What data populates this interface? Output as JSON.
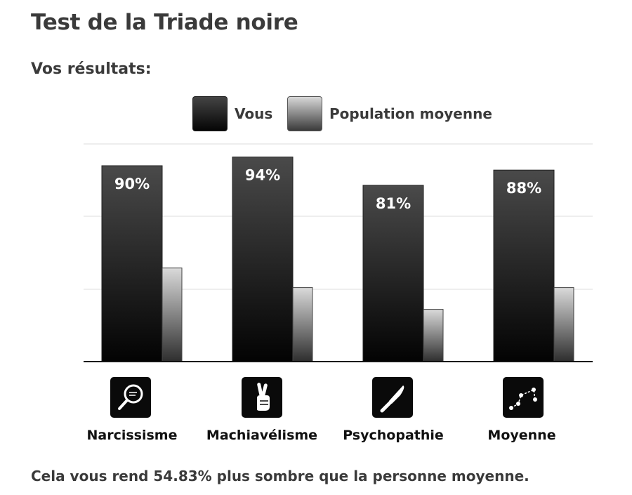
{
  "title": "Test de la Triade noire",
  "subtitle": "Vos résultats:",
  "legend": {
    "you": "Vous",
    "population": "Population moyenne"
  },
  "chart_data": {
    "type": "bar",
    "categories": [
      "Narcissisme",
      "Machiavélisme",
      "Psychopathie",
      "Moyenne"
    ],
    "series": [
      {
        "name": "Vous",
        "values": [
          90,
          94,
          81,
          88
        ],
        "labels": [
          "90%",
          "94%",
          "81%",
          "88%"
        ],
        "color": "#1a1a1a"
      },
      {
        "name": "Population moyenne",
        "values": [
          43,
          34,
          24,
          34
        ],
        "color": "#8a8a8a"
      }
    ],
    "ylim": [
      0,
      100
    ],
    "grid": true,
    "legend_position": "top-center"
  },
  "icons": [
    "magnifier-icon",
    "crossed-fingers-icon",
    "knife-icon",
    "graph-icon"
  ],
  "footer": "Cela vous rend 54.83% plus sombre que la personne moyenne."
}
